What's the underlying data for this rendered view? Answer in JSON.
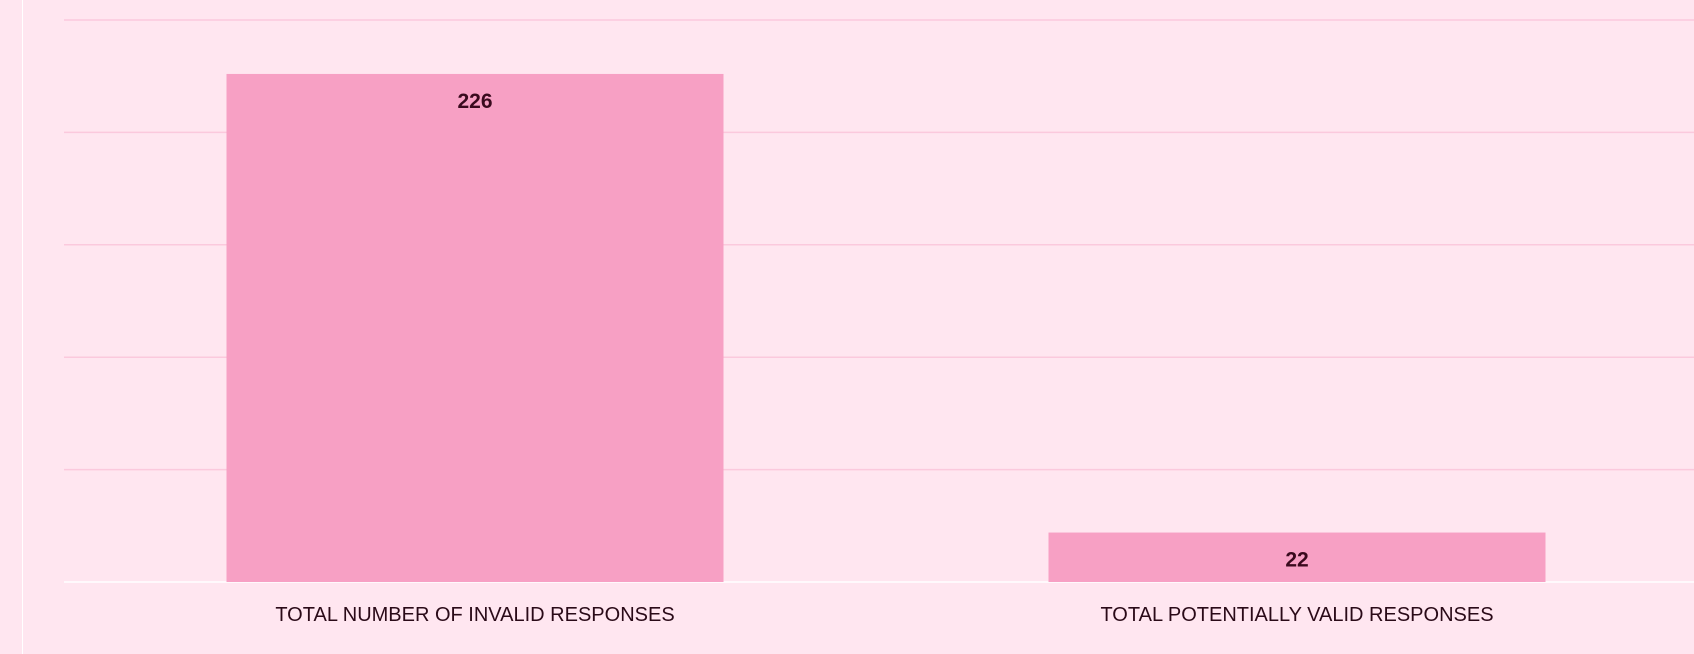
{
  "chart_data": {
    "type": "bar",
    "categories": [
      "TOTAL NUMBER OF INVALID RESPONSES",
      "TOTAL POTENTIALLY VALID RESPONSES"
    ],
    "values": [
      226,
      22
    ],
    "data_labels": [
      "226",
      "22"
    ],
    "ylim": [
      0,
      250
    ],
    "grid": true,
    "legend": "none"
  },
  "colors": {
    "background": "#ffe6f0",
    "bar": "#f7a0c4",
    "gridline": "#fbc9dd",
    "label": "#3a0a1e"
  }
}
